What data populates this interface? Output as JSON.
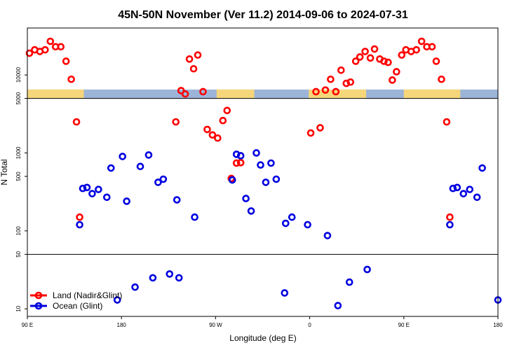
{
  "chart_data": {
    "type": "scatter",
    "title": "45N-50N November (Ver 11.2)   2014-09-06 to 2024-07-31",
    "xlabel": "Longitude (deg E)",
    "ylabel": "N Total",
    "x_ticks": [
      {
        "value": 90,
        "label": "90 E"
      },
      {
        "value": 180,
        "label": "180"
      },
      {
        "value": 270,
        "label": "90 W"
      },
      {
        "value": 360,
        "label": "0"
      },
      {
        "value": 450,
        "label": "90 E"
      },
      {
        "value": 540,
        "label": "180"
      }
    ],
    "y_ticks": [
      {
        "value": 10,
        "label": "10"
      },
      {
        "value": 50,
        "label": "50"
      },
      {
        "value": 100,
        "label": "100"
      },
      {
        "value": 500,
        "label": "500"
      },
      {
        "value": 1000,
        "label": "1000"
      },
      {
        "value": 5000,
        "label": "5000"
      },
      {
        "value": 10000,
        "label": "10000"
      }
    ],
    "xlim": [
      90,
      540
    ],
    "ylim": [
      8,
      40000
    ],
    "yscale": "log",
    "horizontal_lines": [
      50,
      5000
    ],
    "land_mask": {
      "ocean_color": "#9db4d9",
      "land_color": "#f5d67a",
      "y_low": 5000,
      "y_high": 6500,
      "land_ranges": [
        [
          90,
          144
        ],
        [
          271,
          307
        ],
        [
          359,
          414
        ],
        [
          450,
          504
        ]
      ]
    },
    "legend": {
      "position": "bottom-left",
      "entries": [
        {
          "label": "Land (Nadir&Glint)",
          "color": "#ff0000"
        },
        {
          "label": "Ocean (Glint)",
          "color": "#0000e0"
        }
      ]
    },
    "series": [
      {
        "name": "Land (Nadir&Glint)",
        "color": "#ff0000",
        "points": [
          [
            92,
            19000
          ],
          [
            97,
            21000
          ],
          [
            102,
            20000
          ],
          [
            107,
            21000
          ],
          [
            112,
            27000
          ],
          [
            117,
            23000
          ],
          [
            122,
            23000
          ],
          [
            127,
            15000
          ],
          [
            132,
            8800
          ],
          [
            137,
            2500
          ],
          [
            140,
            150
          ],
          [
            232,
            2500
          ],
          [
            237,
            6300
          ],
          [
            241,
            5700
          ],
          [
            245,
            16000
          ],
          [
            249,
            12000
          ],
          [
            253,
            18000
          ],
          [
            258,
            6100
          ],
          [
            262,
            2000
          ],
          [
            267,
            1700
          ],
          [
            272,
            1550
          ],
          [
            277,
            2600
          ],
          [
            281,
            3500
          ],
          [
            285,
            470
          ],
          [
            290,
            740
          ],
          [
            294,
            750
          ],
          [
            361,
            1800
          ],
          [
            366,
            6100
          ],
          [
            370,
            2100
          ],
          [
            375,
            6400
          ],
          [
            380,
            8800
          ],
          [
            385,
            6100
          ],
          [
            390,
            11500
          ],
          [
            395,
            7800
          ],
          [
            399,
            8100
          ],
          [
            404,
            15000
          ],
          [
            408,
            17000
          ],
          [
            413,
            20000
          ],
          [
            418,
            16500
          ],
          [
            422,
            21500
          ],
          [
            427,
            16000
          ],
          [
            431,
            15000
          ],
          [
            435,
            14500
          ],
          [
            439,
            8600
          ],
          [
            443,
            11000
          ],
          [
            448,
            18000
          ],
          [
            452,
            21000
          ],
          [
            457,
            20000
          ],
          [
            462,
            21000
          ],
          [
            467,
            27000
          ],
          [
            472,
            23000
          ],
          [
            477,
            23000
          ],
          [
            481,
            15000
          ],
          [
            486,
            8800
          ],
          [
            491,
            2500
          ],
          [
            494,
            150
          ]
        ]
      },
      {
        "name": "Ocean (Glint)",
        "color": "#0000e0",
        "points": [
          [
            140,
            120
          ],
          [
            143,
            350
          ],
          [
            147,
            360
          ],
          [
            152,
            300
          ],
          [
            158,
            340
          ],
          [
            166,
            270
          ],
          [
            170,
            640
          ],
          [
            176,
            13
          ],
          [
            181,
            900
          ],
          [
            185,
            240
          ],
          [
            193,
            19
          ],
          [
            198,
            670
          ],
          [
            206,
            940
          ],
          [
            210,
            25
          ],
          [
            215,
            420
          ],
          [
            220,
            460
          ],
          [
            226,
            28
          ],
          [
            233,
            250
          ],
          [
            235,
            25
          ],
          [
            250,
            150
          ],
          [
            286,
            450
          ],
          [
            290,
            960
          ],
          [
            294,
            920
          ],
          [
            299,
            260
          ],
          [
            304,
            180
          ],
          [
            309,
            1000
          ],
          [
            313,
            700
          ],
          [
            318,
            420
          ],
          [
            323,
            740
          ],
          [
            328,
            460
          ],
          [
            336,
            16
          ],
          [
            337,
            125
          ],
          [
            343,
            150
          ],
          [
            358,
            120
          ],
          [
            377,
            87
          ],
          [
            387,
            11
          ],
          [
            398,
            22
          ],
          [
            415,
            32
          ],
          [
            494,
            120
          ],
          [
            497,
            350
          ],
          [
            501,
            360
          ],
          [
            507,
            300
          ],
          [
            513,
            340
          ],
          [
            520,
            270
          ],
          [
            525,
            640
          ],
          [
            540,
            13
          ]
        ]
      }
    ]
  }
}
